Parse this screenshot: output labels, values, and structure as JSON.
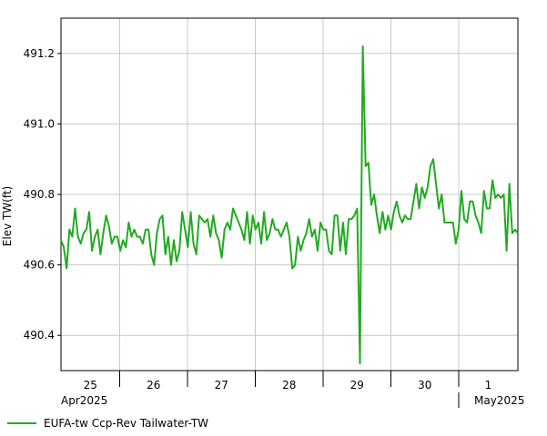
{
  "chart_data": {
    "type": "line",
    "title": "",
    "ylabel": "Elev TW(ft)",
    "xlabel": "",
    "ylim": [
      490.3,
      491.3
    ],
    "xlim": [
      24.5,
      1.4
    ],
    "y_ticks": [
      "490.4",
      "490.6",
      "490.8",
      "491.0",
      "491.2"
    ],
    "day_labels": [
      "25",
      "26",
      "27",
      "28",
      "29",
      "30",
      "1"
    ],
    "month_labels": [
      "Apr2025",
      "May2025"
    ],
    "grid": true,
    "legend_position": "bottom-left",
    "line_color": "#22aa22",
    "series": [
      {
        "name": "EUFA-tw Ccp-Rev Tailwater-TW",
        "values": [
          490.67,
          490.65,
          490.59,
          490.7,
          490.68,
          490.76,
          490.68,
          490.66,
          490.69,
          490.7,
          490.75,
          490.64,
          490.68,
          490.7,
          490.63,
          490.69,
          490.74,
          490.71,
          490.66,
          490.68,
          490.68,
          490.64,
          490.67,
          490.65,
          490.72,
          490.68,
          490.7,
          490.68,
          490.68,
          490.66,
          490.7,
          490.7,
          490.63,
          490.6,
          490.69,
          490.73,
          490.74,
          490.63,
          490.68,
          490.6,
          490.67,
          490.61,
          490.64,
          490.75,
          490.7,
          490.65,
          490.75,
          490.66,
          490.63,
          490.74,
          490.73,
          490.72,
          490.73,
          490.68,
          490.74,
          490.69,
          490.67,
          490.62,
          490.7,
          490.72,
          490.7,
          490.76,
          490.74,
          490.72,
          490.7,
          490.67,
          490.75,
          490.66,
          490.74,
          490.7,
          490.72,
          490.66,
          490.75,
          490.67,
          490.69,
          490.73,
          490.7,
          490.7,
          490.68,
          490.7,
          490.72,
          490.68,
          490.59,
          490.6,
          490.68,
          490.64,
          490.67,
          490.69,
          490.73,
          490.68,
          490.7,
          490.64,
          490.72,
          490.7,
          490.7,
          490.64,
          490.63,
          490.74,
          490.74,
          490.64,
          490.72,
          490.63,
          490.73,
          490.73,
          490.74,
          490.76,
          490.32,
          491.22,
          490.88,
          490.89,
          490.77,
          490.8,
          490.74,
          490.69,
          490.75,
          490.7,
          490.74,
          490.7,
          490.75,
          490.78,
          490.74,
          490.72,
          490.74,
          490.73,
          490.73,
          490.78,
          490.83,
          490.76,
          490.82,
          490.79,
          490.82,
          490.88,
          490.9,
          490.83,
          490.76,
          490.8,
          490.72,
          490.72,
          490.72,
          490.72,
          490.66,
          490.7,
          490.81,
          490.73,
          490.72,
          490.78,
          490.78,
          490.74,
          490.72,
          490.69,
          490.81,
          490.76,
          490.76,
          490.84,
          490.79,
          490.8,
          490.79,
          490.8,
          490.64,
          490.83,
          490.69,
          490.7,
          490.69
        ]
      }
    ]
  }
}
